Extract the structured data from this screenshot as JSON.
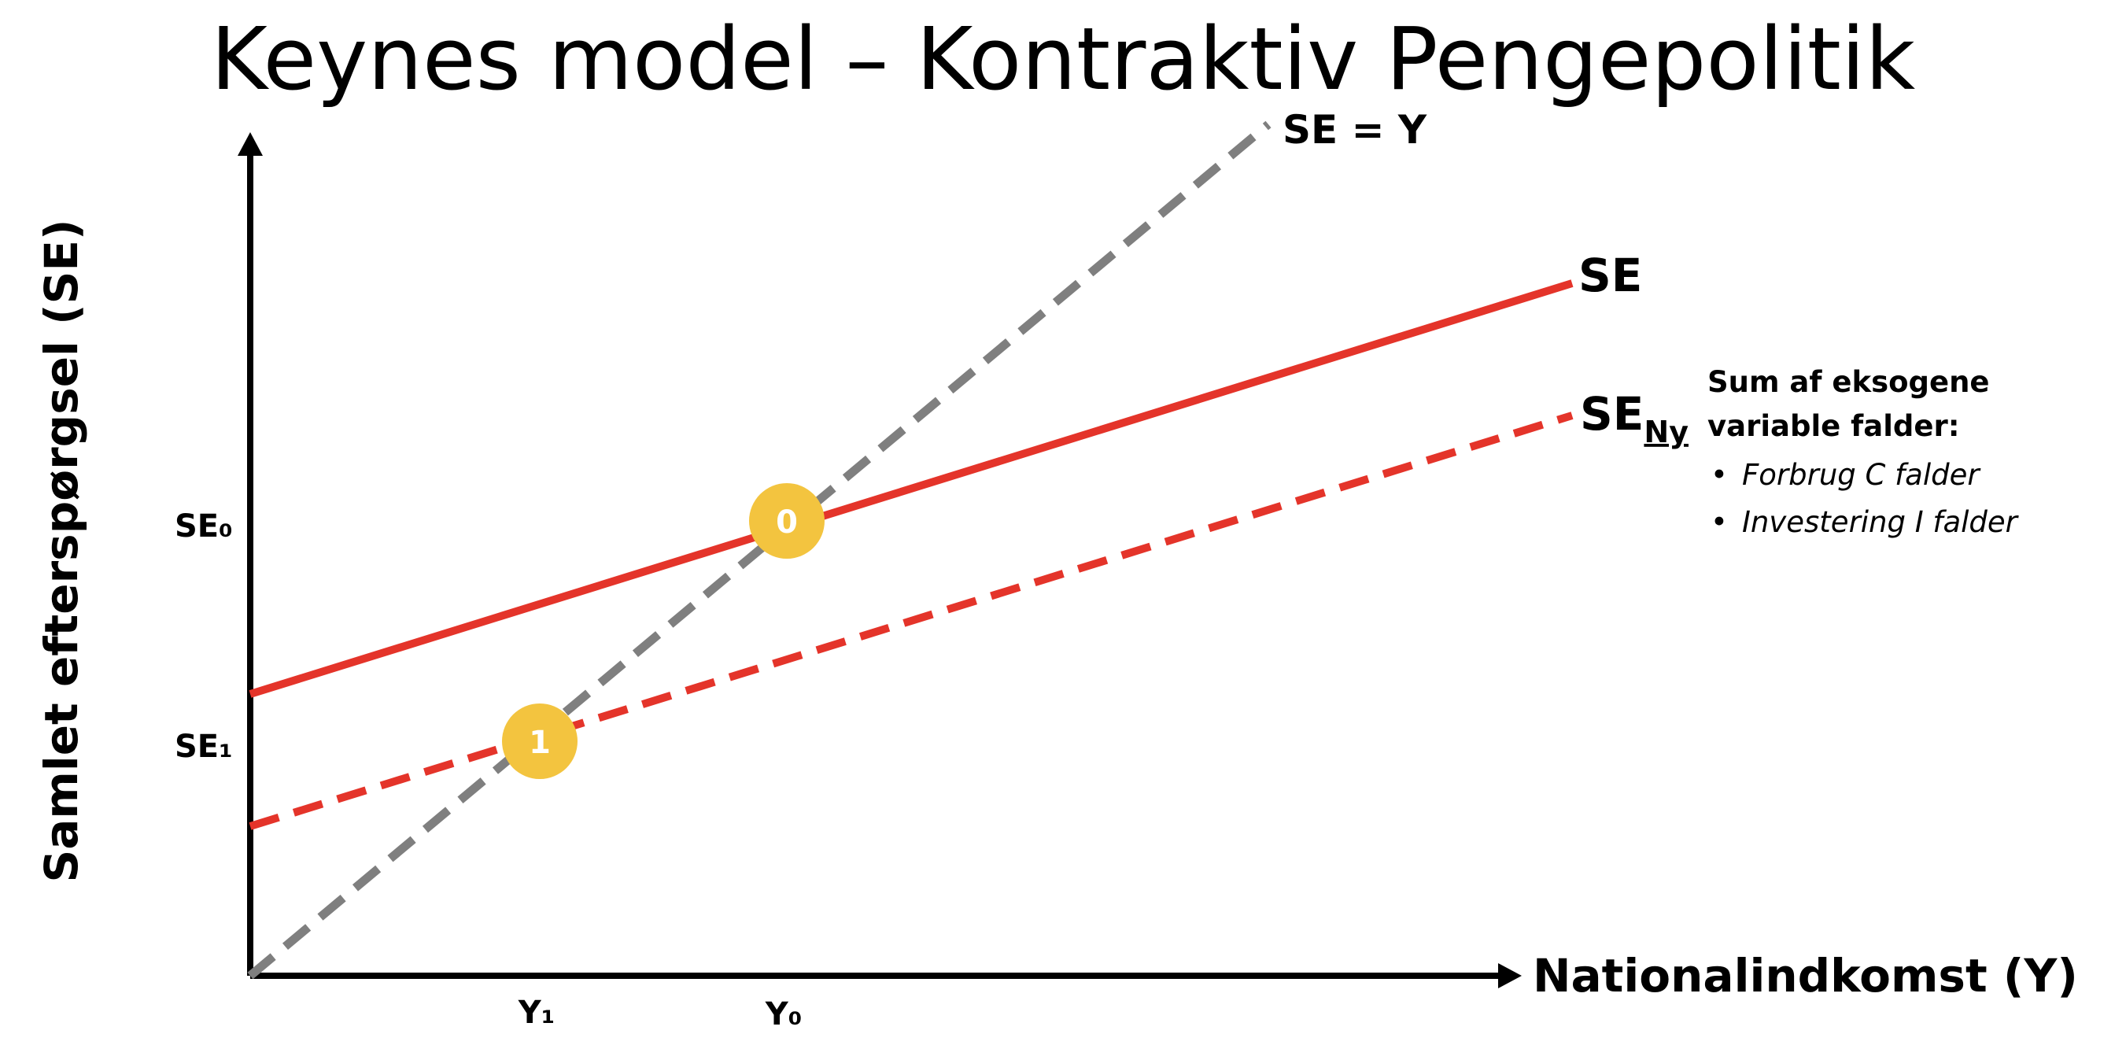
{
  "title": "Keynes model – Kontraktiv Pengepolitik",
  "axes": {
    "y_label": "Samlet efterspørgsel (SE)",
    "x_label": "Nationalindkomst (Y)",
    "y_ticks": [
      "SE₀",
      "SE₁"
    ],
    "x_ticks": [
      "Y₁",
      "Y₀"
    ]
  },
  "lines": {
    "identity": {
      "label": "SE = Y",
      "color": "#7f7f7f",
      "style": "dashed"
    },
    "original": {
      "label": "SE",
      "color": "#e4342a",
      "style": "solid"
    },
    "new": {
      "label_main": "SE",
      "label_sub": "Ny",
      "color": "#e4342a",
      "style": "dashed"
    }
  },
  "equilibria": [
    {
      "label": "0",
      "color": "#f3c43f"
    },
    {
      "label": "1",
      "color": "#f3c43f"
    }
  ],
  "note": {
    "heading": "Sum af eksogene variable falder:",
    "items": [
      "Forbrug C falder",
      "Investering I falder"
    ]
  }
}
